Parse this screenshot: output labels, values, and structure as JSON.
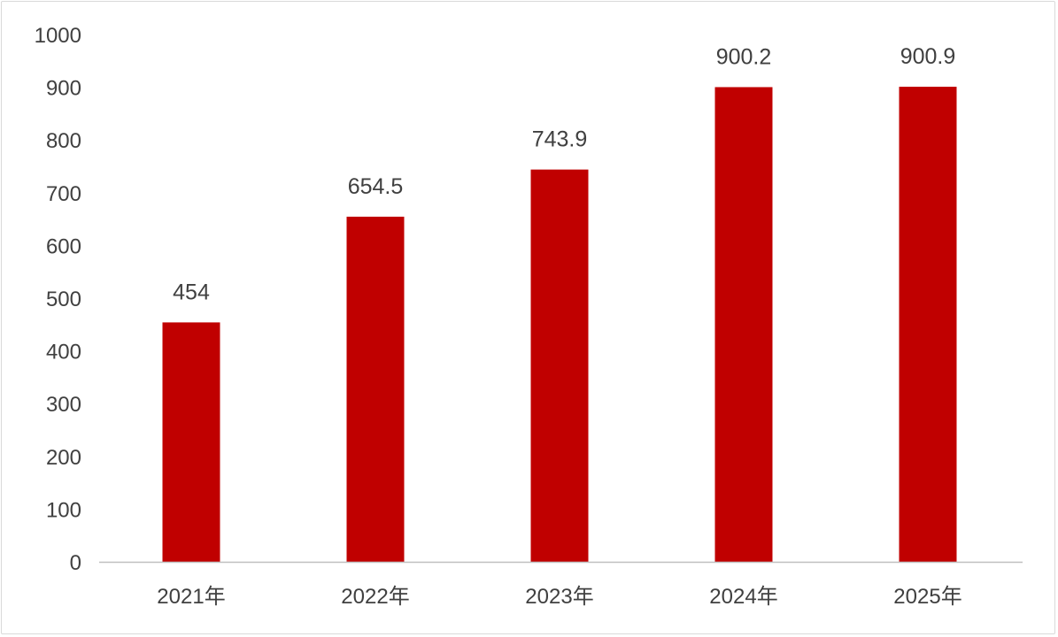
{
  "chart_data": {
    "type": "bar",
    "categories": [
      "2021年",
      "2022年",
      "2023年",
      "2024年",
      "2025年"
    ],
    "values": [
      454,
      654.5,
      743.9,
      900.2,
      900.9
    ],
    "data_labels": [
      "454",
      "654.5",
      "743.9",
      "900.2",
      "900.9"
    ],
    "title": "",
    "xlabel": "",
    "ylabel": "",
    "ylim": [
      0,
      1000
    ],
    "yticks": [
      "0",
      "100",
      "200",
      "300",
      "400",
      "500",
      "600",
      "700",
      "800",
      "900",
      "1000"
    ],
    "grid": false,
    "legend": "none",
    "bar_color": "#c00000",
    "text_color": "#404040",
    "axis_color": "#bfbfbf"
  }
}
